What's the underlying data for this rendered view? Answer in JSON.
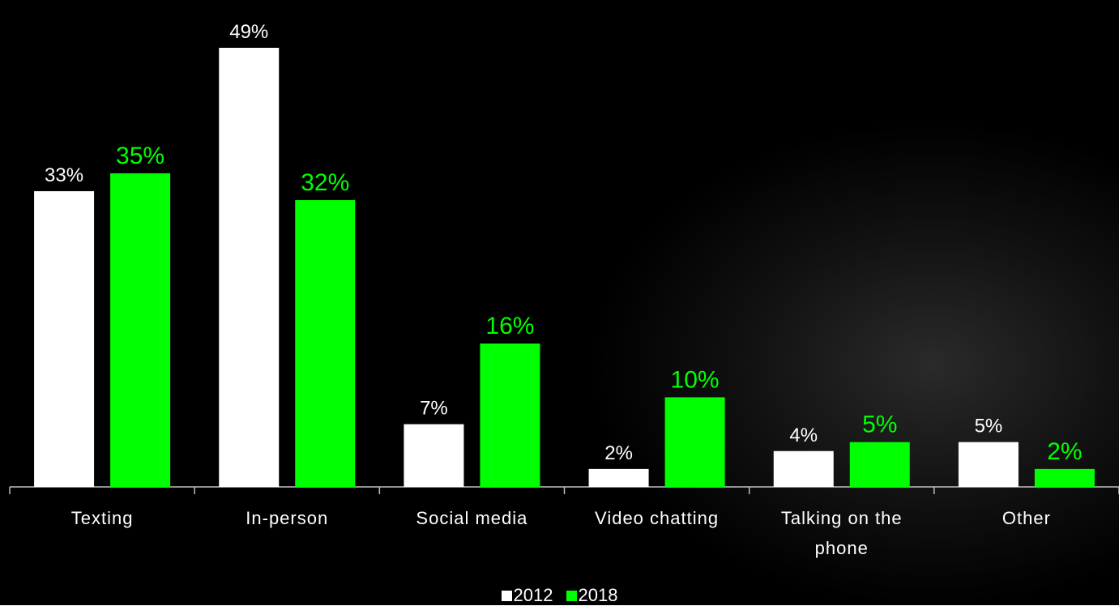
{
  "chart_data": {
    "type": "bar",
    "categories": [
      "Texting",
      "In-person",
      "Social media",
      "Video chatting",
      "Talking on the phone",
      "Other"
    ],
    "series": [
      {
        "name": "2012",
        "color": "#ffffff",
        "values": [
          33,
          49,
          7,
          2,
          4,
          5
        ],
        "value_labels": [
          "33%",
          "49%",
          "7%",
          "2%",
          "4%",
          "5%"
        ]
      },
      {
        "name": "2018",
        "color": "#00ff00",
        "values": [
          35,
          32,
          16,
          10,
          5,
          2
        ],
        "value_labels": [
          "35%",
          "32%",
          "16%",
          "10%",
          "5%",
          "2%"
        ]
      }
    ],
    "legend": "bottom"
  }
}
